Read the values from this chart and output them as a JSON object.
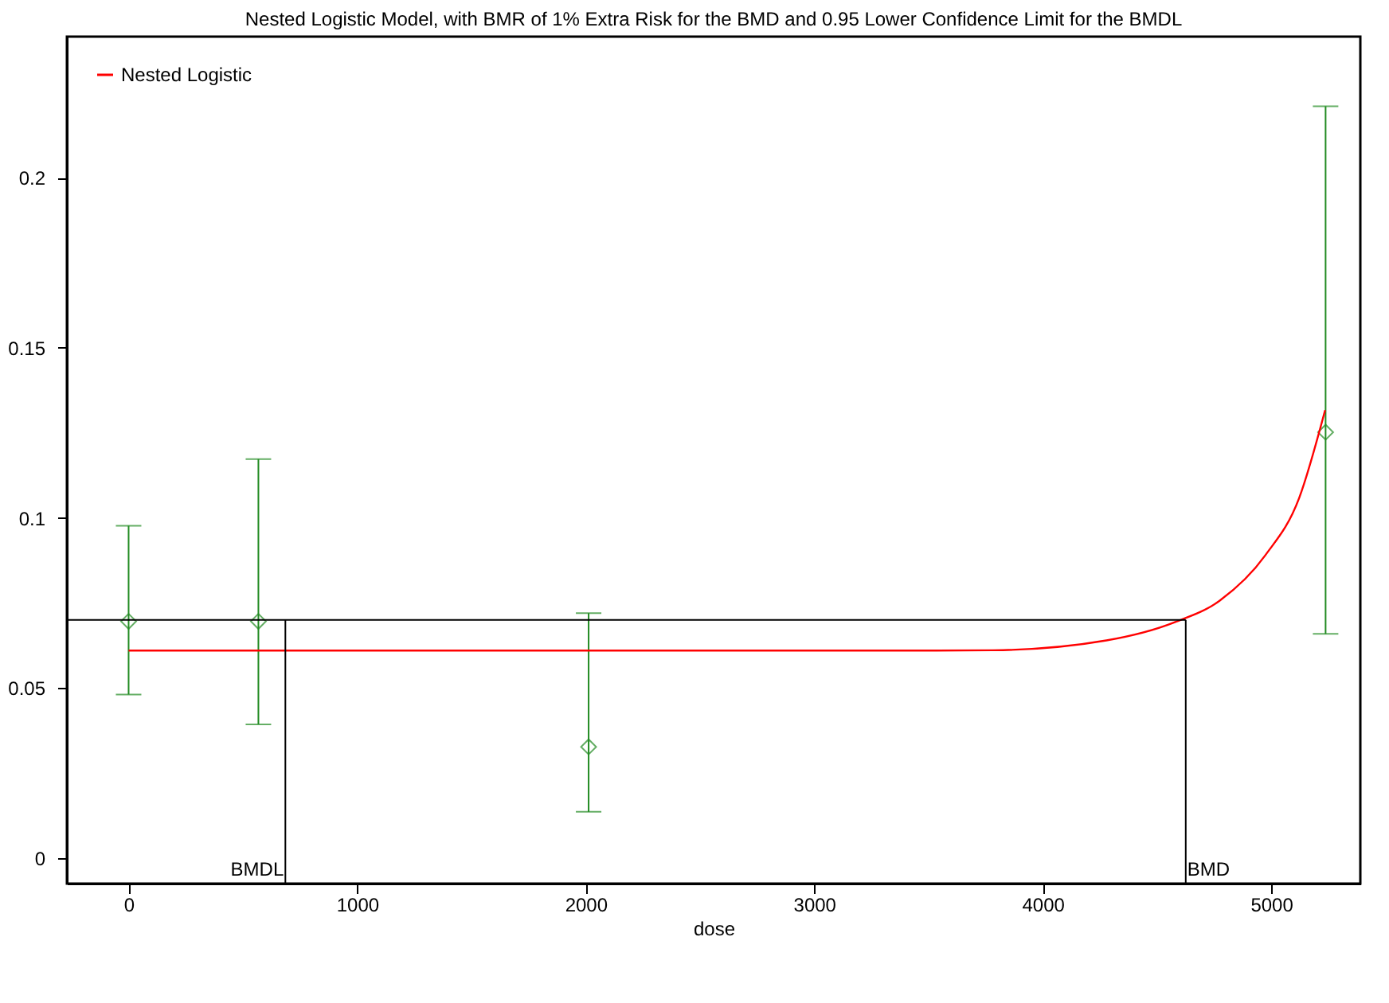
{
  "chart_data": {
    "type": "scatter",
    "title": "Nested Logistic Model, with BMR of 1% Extra Risk for the BMD and 0.95 Lower Confidence Limit for the BMDL",
    "xlabel": "dose",
    "xlim": [
      -270,
      5390
    ],
    "xticks": [
      0,
      1000,
      2000,
      3000,
      4000,
      5000
    ],
    "ylim": [
      -0.0075,
      0.2415
    ],
    "yticks": [
      0,
      0.05,
      0.1,
      0.15,
      0.2
    ],
    "grid": false,
    "legend": "top left",
    "series": [
      {
        "color": "#228b22",
        "marker": "diamond",
        "x": [
          0,
          568,
          2013,
          5238
        ],
        "values": [
          0.0696,
          0.0696,
          0.0327,
          0.1252
        ],
        "errors": [
          [
            0.0481,
            0.0977
          ],
          [
            0.0393,
            0.1173
          ],
          [
            0.0136,
            0.072
          ],
          [
            0.0659,
            0.221
          ]
        ]
      },
      {
        "type": "line",
        "name": "Nested Logistic",
        "color": "#ff0000",
        "marker": "none",
        "line_style": "solid",
        "x": [
          0,
          1000,
          2000,
          3000,
          3534,
          3782,
          4279,
          4576,
          4775,
          4974,
          5122,
          5236
        ],
        "values": [
          0.061,
          0.061,
          0.061,
          0.061,
          0.061,
          0.0611,
          0.064,
          0.0693,
          0.0757,
          0.089,
          0.1058,
          0.1317
        ]
      }
    ],
    "ref_lines": [
      {
        "axis": "y",
        "value": 0.07,
        "color": "#000000"
      },
      {
        "axis": "x",
        "value": 686,
        "label": "BMDL",
        "color": "#000000"
      },
      {
        "axis": "x",
        "value": 4626,
        "label": "BMD",
        "color": "#000000"
      }
    ]
  }
}
